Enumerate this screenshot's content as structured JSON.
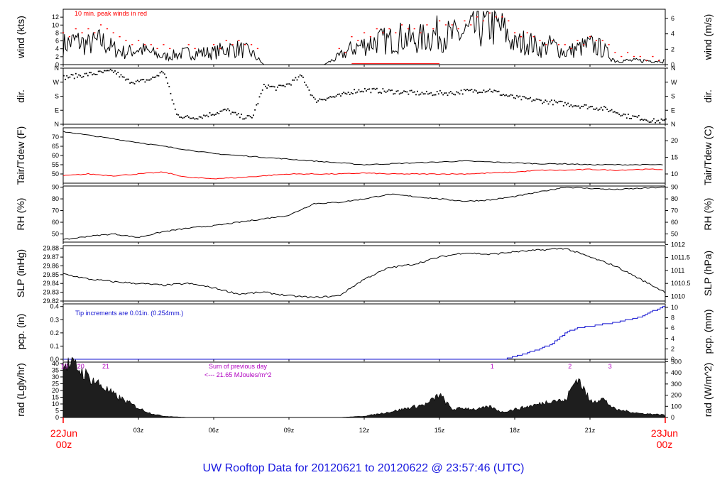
{
  "footer_title": "UW Rooftop Data for 20120621  to  20120622 @ 23:57:46  (UTC)",
  "start_date": {
    "line1": "22Jun",
    "line2": "00z"
  },
  "end_date": {
    "line1": "23Jun",
    "line2": "00z"
  },
  "colors": {
    "peak": "#ff0000",
    "dew": "#ff0000",
    "pcp": "#1010d0",
    "rad_text": "#b000c0",
    "title": "#1a1ae0"
  },
  "x_hour_ticks": [
    "03z",
    "06z",
    "09z",
    "12z",
    "15z",
    "18z",
    "21z"
  ],
  "chart_data": [
    {
      "type": "line",
      "panel": "wind",
      "ylabel": "wind (kts)",
      "ylabel_right": "wind (m/s)",
      "ylim": [
        0,
        14
      ],
      "yticks": [
        0,
        2,
        4,
        6,
        8,
        10,
        12
      ],
      "right_ylim": [
        0,
        7.2
      ],
      "right_yticks": [
        0,
        2,
        4,
        6
      ],
      "annotation": "10 min. peak winds in red",
      "series": [
        {
          "x": [
            0,
            0.5,
            1,
            1.5,
            2,
            2.5,
            3,
            3.5,
            4,
            5,
            6,
            6.5,
            7,
            7.5,
            8,
            9,
            10,
            10.4,
            11,
            11.5,
            12,
            12.5,
            13,
            13.5,
            14,
            14.5,
            15,
            15.5,
            16,
            16.5,
            17,
            17.5,
            18,
            18.5,
            19,
            19.5,
            20,
            20.5,
            21,
            21.5,
            22,
            22.5,
            23,
            23.5,
            24
          ],
          "y": [
            5,
            6,
            5,
            6,
            4,
            3,
            4,
            3,
            2,
            3,
            3,
            4,
            4,
            3,
            0,
            0,
            0,
            0,
            2,
            4,
            5,
            6,
            6,
            7,
            6,
            7,
            8,
            7,
            8,
            9,
            10,
            9,
            5,
            6,
            4,
            5,
            3,
            4,
            5,
            4,
            1,
            1,
            1,
            1,
            1
          ]
        },
        {
          "x": [
            0,
            0.5,
            1,
            1.5,
            2,
            2.5,
            3,
            3.5,
            4,
            5,
            6,
            6.5,
            7,
            7.5,
            11,
            11.5,
            12,
            12.5,
            13,
            13.5,
            14,
            14.5,
            15,
            15.5,
            16,
            16.5,
            17,
            17.5,
            18,
            18.5,
            19,
            19.5,
            20,
            20.5,
            21,
            21.5,
            22,
            22.5,
            23,
            23.5
          ],
          "y": [
            8,
            9,
            9,
            10,
            8,
            6,
            6,
            5,
            5,
            5,
            5,
            6,
            6,
            5,
            4,
            7,
            8,
            9,
            9,
            10,
            9,
            10,
            11,
            10,
            11,
            12,
            13,
            12,
            8,
            8,
            6,
            6,
            5,
            6,
            7,
            6,
            3,
            3,
            2,
            2
          ]
        }
      ]
    },
    {
      "type": "scatter",
      "panel": "dir",
      "ylabel": "dir.",
      "ylabel_right": "dir.",
      "yticks_labels": [
        "N",
        "E",
        "S",
        "W",
        "N"
      ],
      "ylim": [
        0,
        360
      ],
      "series": [
        {
          "x": [
            0,
            0.5,
            1,
            1.5,
            2,
            2.5,
            3,
            3.5,
            4,
            4.5,
            5,
            5.5,
            6,
            6.5,
            7,
            7.5,
            8,
            8.5,
            9,
            9.5,
            10,
            10.5,
            11,
            11.5,
            12,
            12.5,
            13,
            13.5,
            14,
            14.5,
            15,
            15.5,
            16,
            16.5,
            17,
            17.5,
            18,
            18.5,
            19,
            19.5,
            20,
            20.5,
            21,
            21.5,
            22,
            22.5,
            23,
            23.5
          ],
          "y": [
            300,
            310,
            320,
            330,
            340,
            280,
            270,
            290,
            340,
            60,
            40,
            50,
            70,
            90,
            50,
            40,
            250,
            230,
            260,
            310,
            150,
            170,
            180,
            210,
            220,
            215,
            210,
            205,
            200,
            195,
            200,
            200,
            210,
            215,
            220,
            190,
            170,
            160,
            150,
            140,
            130,
            120,
            110,
            100,
            80,
            50,
            40,
            20
          ]
        }
      ]
    },
    {
      "type": "line",
      "panel": "temp",
      "ylabel": "Tair/Tdew (F)",
      "ylabel_right": "Tair/Tdew (C)",
      "ylim": [
        45,
        75
      ],
      "yticks": [
        50,
        55,
        60,
        65,
        70
      ],
      "right_yticks": [
        10,
        15,
        20
      ],
      "series": [
        {
          "x": [
            0,
            1,
            2,
            3,
            4,
            5,
            6,
            7,
            8,
            9,
            10,
            11,
            12,
            13,
            14,
            15,
            16,
            17,
            18,
            19,
            20,
            21,
            22,
            23,
            24
          ],
          "y": [
            73,
            71,
            69,
            67,
            65,
            63,
            61,
            60,
            59,
            58,
            57,
            56,
            55,
            55.5,
            56,
            56.5,
            57,
            56.5,
            56,
            55.5,
            55.5,
            55,
            55,
            55,
            55
          ]
        },
        {
          "x": [
            0,
            1,
            2,
            3,
            4,
            5,
            6,
            7,
            8,
            9,
            10,
            11,
            12,
            13,
            14,
            15,
            16,
            17,
            18,
            19,
            20,
            21,
            22,
            23,
            24
          ],
          "y": [
            49,
            50,
            49,
            50,
            51,
            48,
            47.5,
            48,
            49,
            50,
            50,
            50,
            50.5,
            50,
            50,
            50,
            50,
            50.5,
            51,
            52,
            52,
            52.5,
            52,
            52.5,
            52.5
          ]
        }
      ]
    },
    {
      "type": "line",
      "panel": "rh",
      "ylabel": "RH (%)",
      "ylabel_right": "RH (%)",
      "ylim": [
        43,
        91
      ],
      "yticks": [
        50,
        60,
        70,
        80,
        90
      ],
      "right_yticks": [
        50,
        60,
        70,
        80,
        90
      ],
      "series": [
        {
          "x": [
            0,
            1,
            2,
            3,
            4,
            5,
            6,
            7,
            8,
            9,
            10,
            11,
            12,
            13,
            14,
            15,
            16,
            17,
            18,
            19,
            20,
            21,
            22,
            23,
            24
          ],
          "y": [
            45,
            48,
            50,
            47,
            52,
            55,
            57,
            60,
            63,
            66,
            76,
            77,
            80,
            84,
            82,
            80,
            78,
            79,
            82,
            86,
            90,
            89,
            88,
            89,
            90
          ]
        }
      ]
    },
    {
      "type": "line",
      "panel": "slp",
      "ylabel": "SLP (inHg)",
      "ylabel_right": "SLP (hPa)",
      "ylim": [
        29.82,
        29.883
      ],
      "yticks": [
        29.82,
        29.83,
        29.84,
        29.85,
        29.86,
        29.87,
        29.88
      ],
      "right_yticks": [
        1010,
        1010.5,
        1011,
        1011.5,
        1012
      ],
      "series": [
        {
          "x": [
            0,
            1,
            2,
            3,
            4,
            5,
            6,
            7,
            8,
            9,
            10,
            11,
            12,
            13,
            14,
            15,
            16,
            17,
            18,
            19,
            20,
            21,
            22,
            23,
            24
          ],
          "y": [
            29.851,
            29.845,
            29.842,
            29.84,
            29.838,
            29.84,
            29.835,
            29.828,
            29.83,
            29.826,
            29.824,
            29.826,
            29.845,
            29.858,
            29.862,
            29.87,
            29.875,
            29.873,
            29.876,
            29.878,
            29.88,
            29.87,
            29.86,
            29.845,
            29.83
          ]
        }
      ]
    },
    {
      "type": "line",
      "panel": "pcp",
      "ylabel": "pcp. (in)",
      "ylabel_right": "pcp. (mm)",
      "ylim": [
        0,
        0.42
      ],
      "yticks": [
        0.0,
        0.1,
        0.2,
        0.3,
        0.4
      ],
      "right_yticks": [
        0,
        2,
        4,
        6,
        8,
        10
      ],
      "annotation": "Tip increments are 0.01in. (0.254mm.)",
      "series": [
        {
          "x": [
            0,
            17.5,
            18,
            19,
            19.5,
            20,
            20.5,
            21,
            22,
            23,
            24
          ],
          "y": [
            0,
            0,
            0.02,
            0.08,
            0.12,
            0.2,
            0.24,
            0.25,
            0.28,
            0.32,
            0.41
          ]
        }
      ]
    },
    {
      "type": "area",
      "panel": "rad",
      "ylabel": "rad (Lgly/hr)",
      "ylabel_right": "rad (W/m^2)",
      "ylim": [
        0,
        41
      ],
      "yticks": [
        0,
        5,
        10,
        15,
        20,
        25,
        30,
        35,
        40
      ],
      "right_yticks": [
        0,
        100,
        200,
        300,
        400,
        500
      ],
      "annotations": [
        "Sum of previous day",
        "<--- 21.65 MJoules/m^2"
      ],
      "hour_markers": [
        "19",
        "20",
        "21",
        "1",
        "2",
        "3"
      ],
      "series": [
        {
          "x": [
            0,
            0.5,
            1,
            1.5,
            2,
            2.5,
            3,
            3.5,
            4,
            5,
            11,
            12,
            13,
            14,
            14.5,
            15,
            15.5,
            16,
            16.5,
            17,
            17.5,
            18,
            19,
            19.5,
            20,
            20.5,
            21,
            21.5,
            22,
            23,
            24
          ],
          "y": [
            40,
            38,
            30,
            24,
            17,
            12,
            7,
            3,
            1,
            0,
            0,
            1,
            4,
            8,
            10,
            17,
            6,
            7,
            6,
            8,
            4,
            6,
            10,
            13,
            12,
            30,
            12,
            14,
            6,
            3,
            2
          ]
        }
      ]
    }
  ]
}
